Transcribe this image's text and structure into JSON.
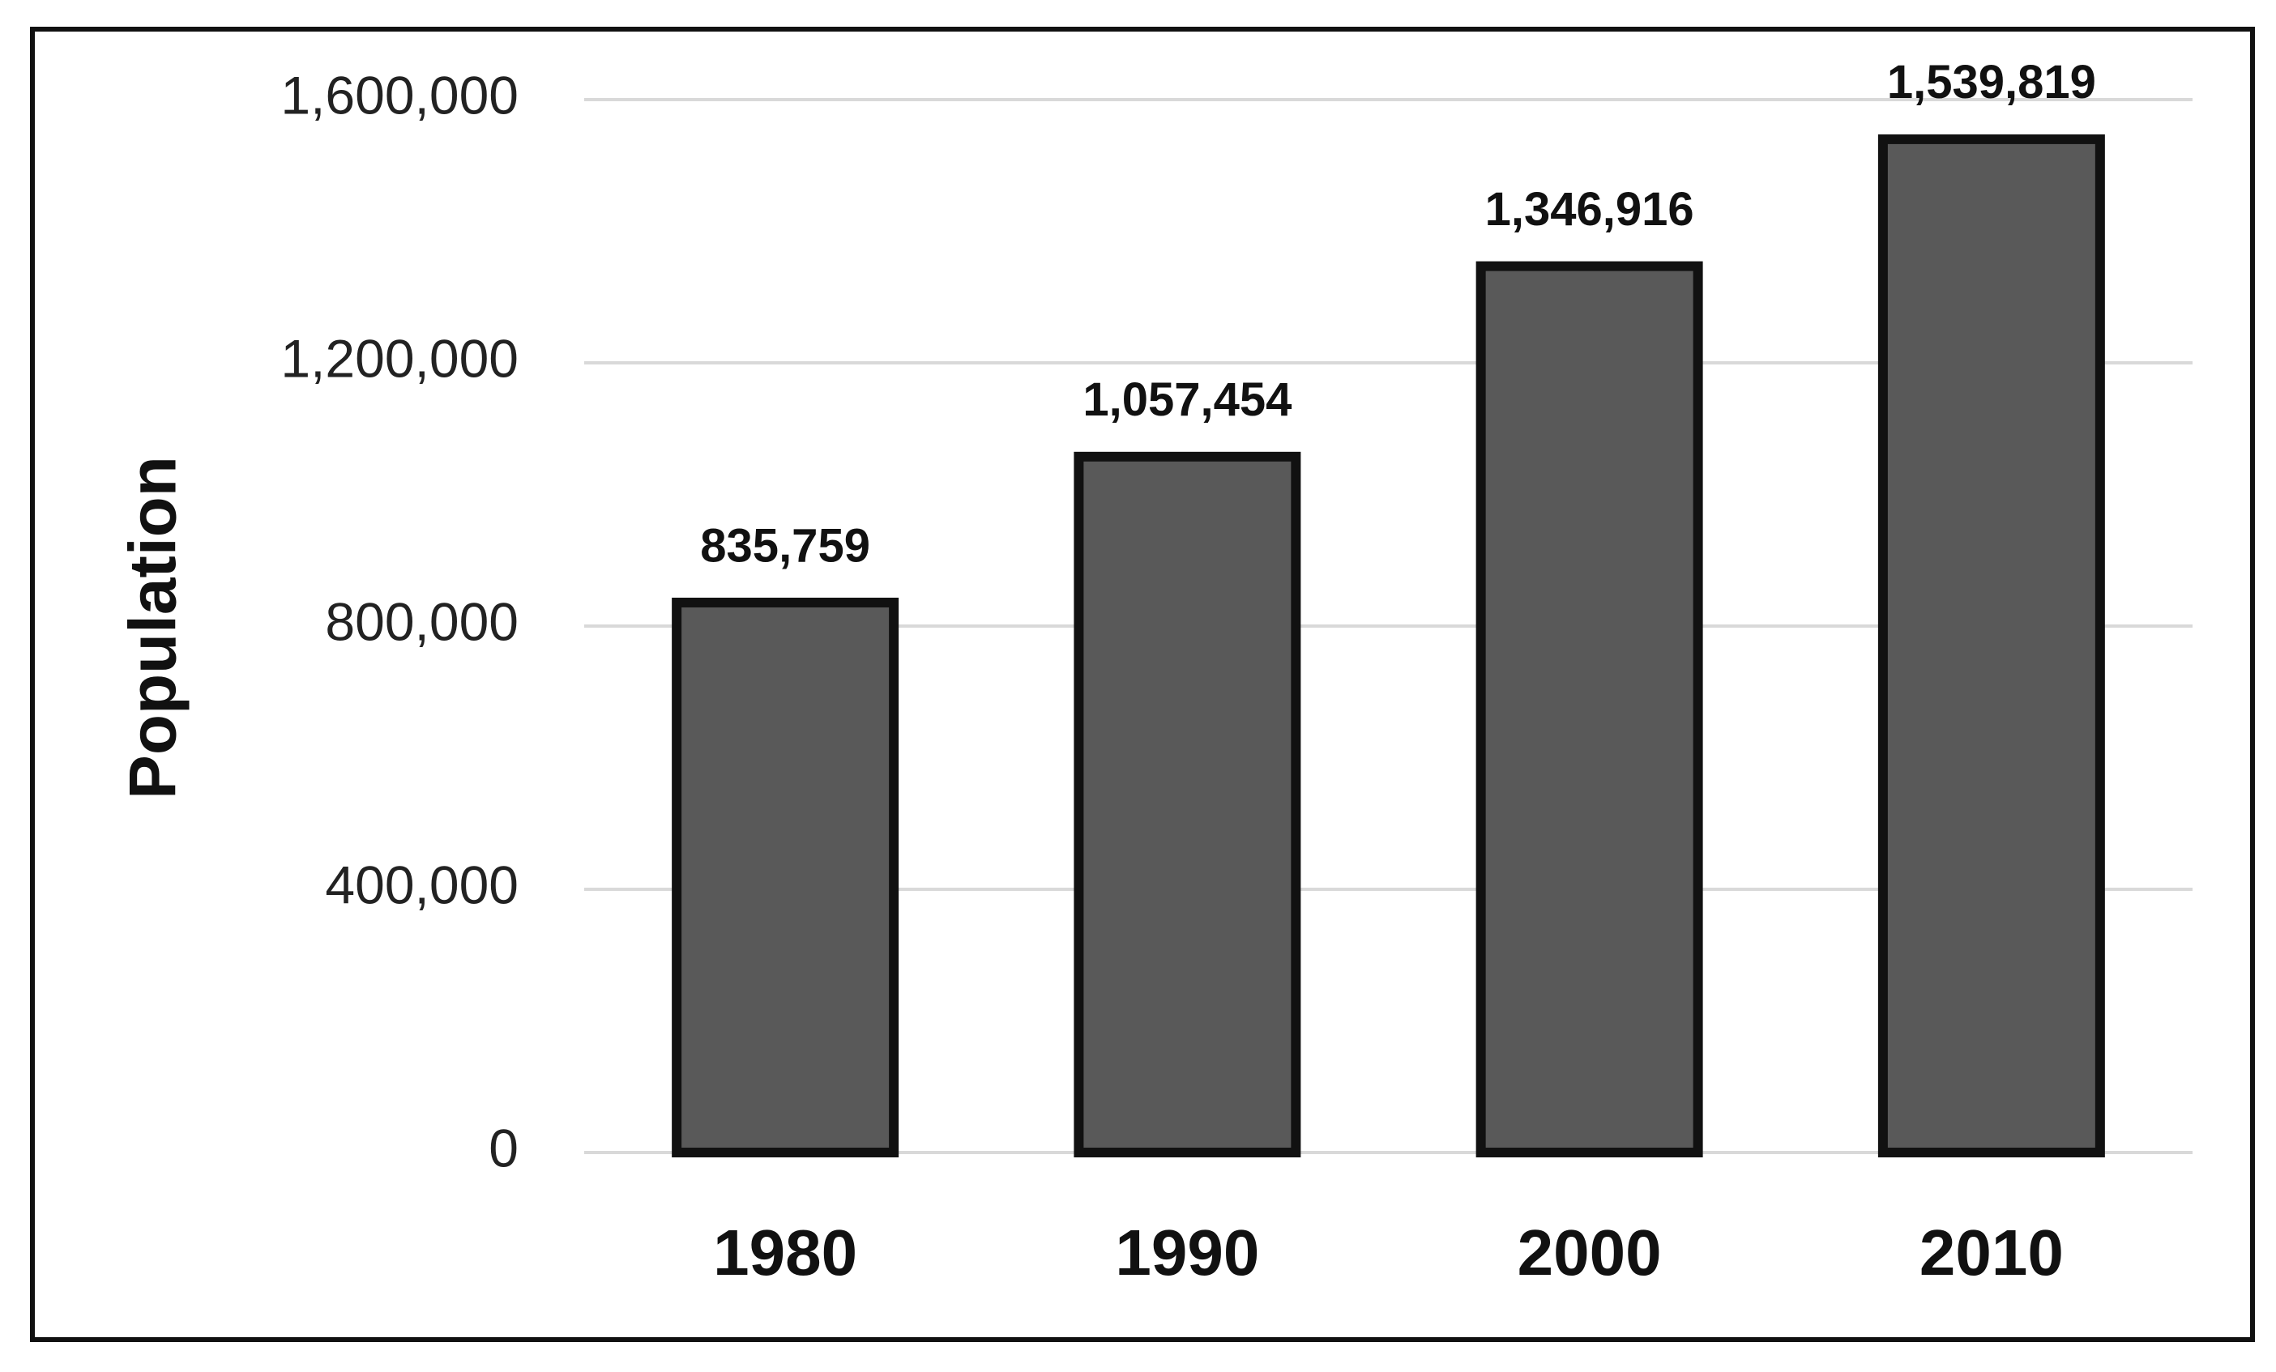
{
  "chart_data": {
    "type": "bar",
    "y_label": "Population",
    "categories": [
      "1980",
      "1990",
      "2000",
      "2010"
    ],
    "values": [
      835759,
      1057454,
      1346916,
      1539819
    ],
    "value_labels": [
      "835,759",
      "1,057,454",
      "1,346,916",
      "1,539,819"
    ],
    "color": "#595959",
    "ylim": [
      0,
      1600000
    ],
    "yticks": [
      0,
      {
        "value": 400000,
        "label": "400,000"
      },
      {
        "value": 800000,
        "label": "800,000"
      },
      {
        "value": 1200000,
        "label": "1,200,000"
      },
      {
        "value": 1600000,
        "label": "1,600,000"
      }
    ],
    "grid": true
  }
}
